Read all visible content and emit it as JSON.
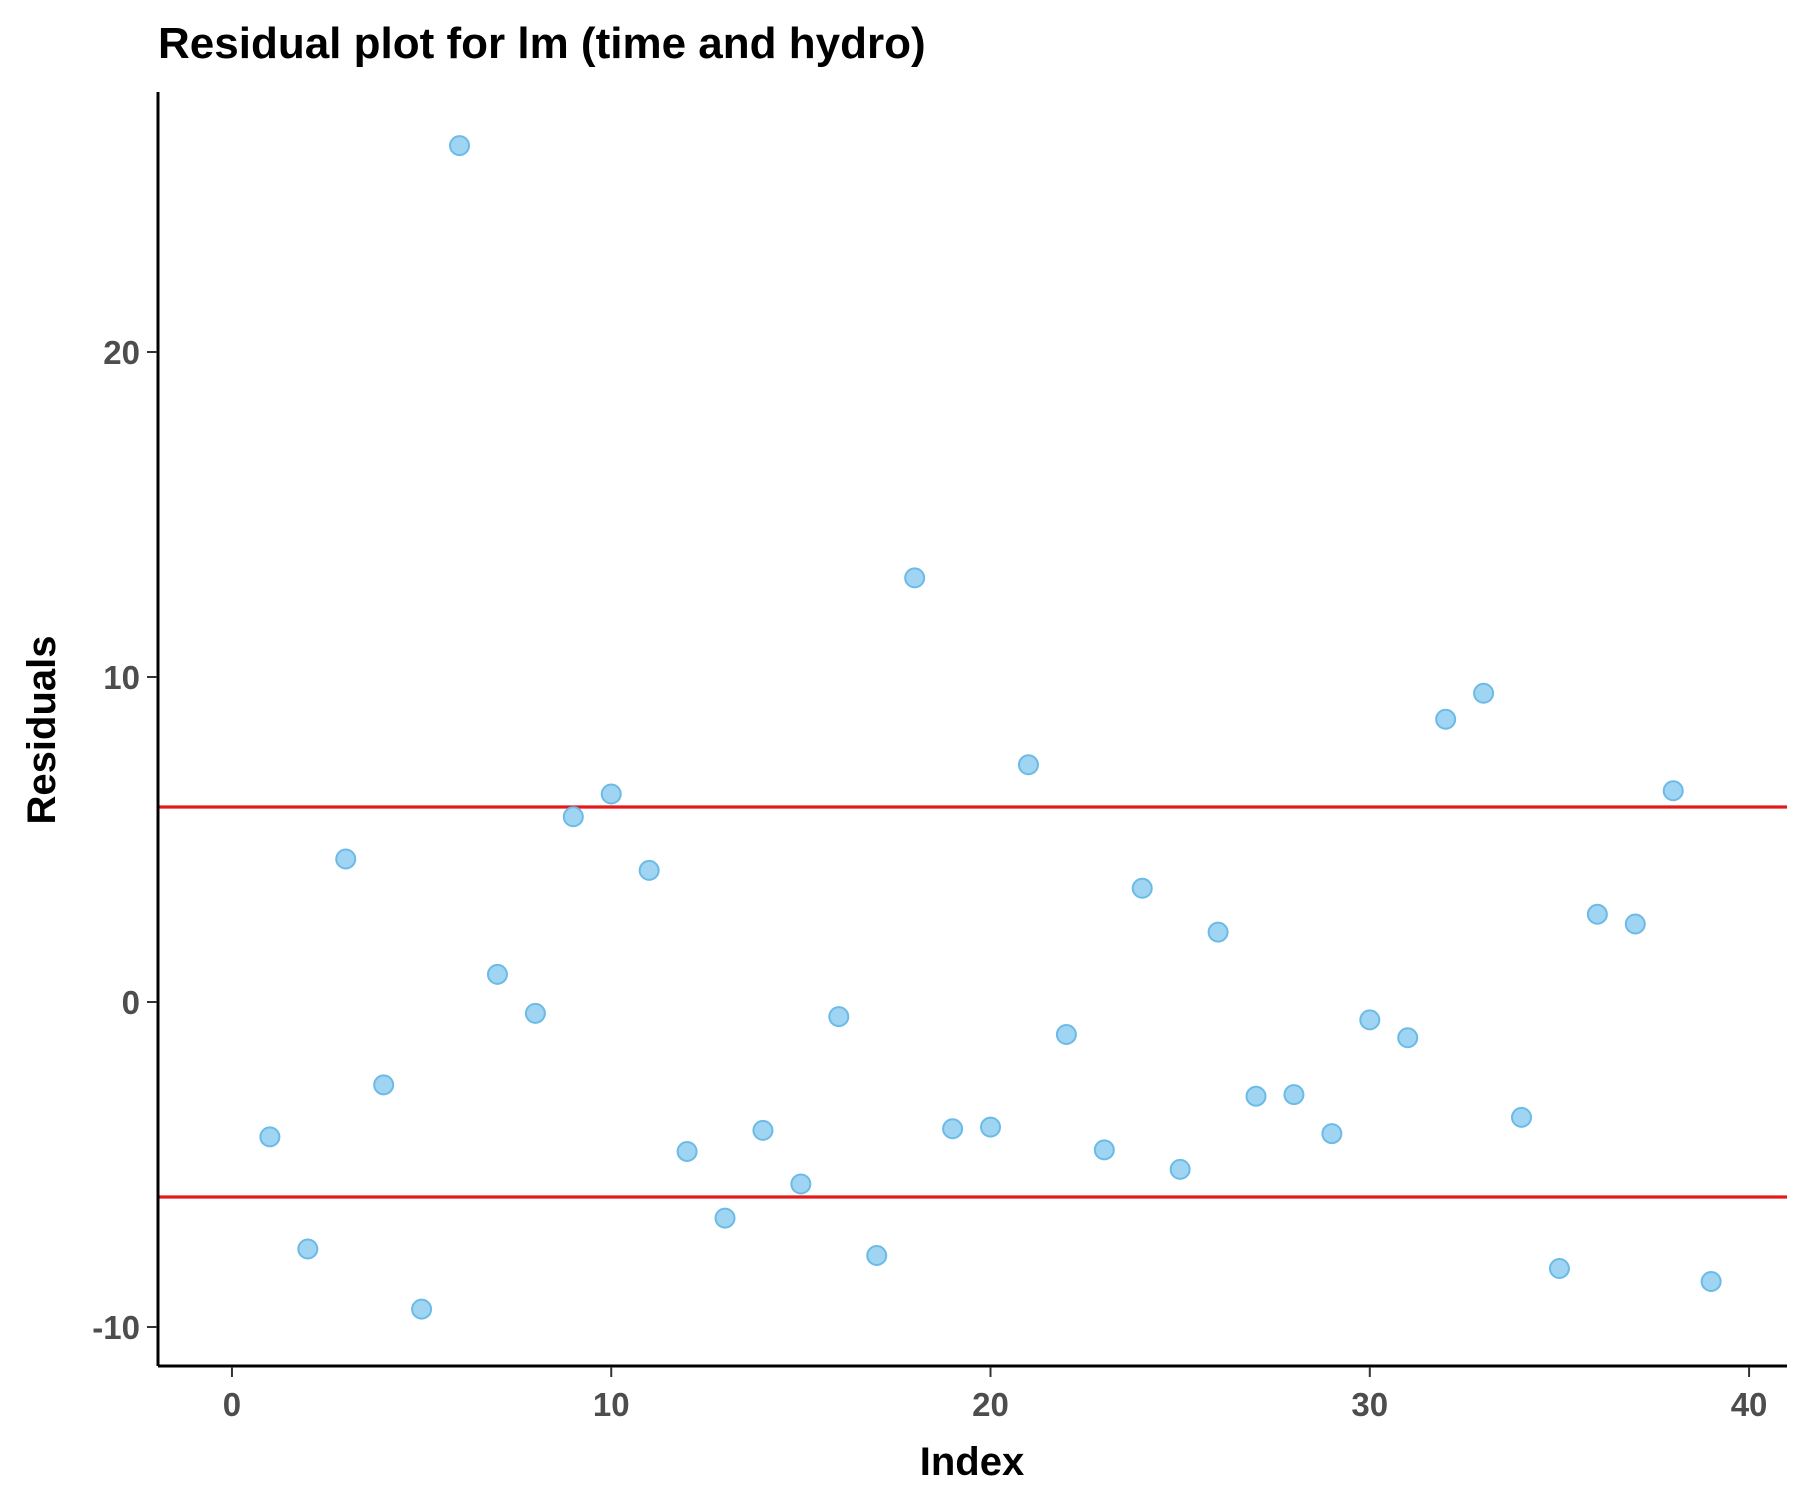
{
  "chart_data": {
    "type": "scatter",
    "title": "Residual plot for lm (time and hydro)",
    "xlabel": "Index",
    "ylabel": "Residuals",
    "xlim": [
      -1.95,
      41.0
    ],
    "ylim": [
      -11.2,
      28.0
    ],
    "x_ticks": [
      0,
      10,
      20,
      30,
      40
    ],
    "x_tick_labels": [
      "0",
      "10",
      "20",
      "30",
      "40"
    ],
    "y_ticks": [
      -10,
      0,
      10,
      20
    ],
    "y_tick_labels": [
      "-10",
      "0",
      "10",
      "20"
    ],
    "grid": false,
    "legend": "none",
    "point_fill": "#9FD4F2",
    "point_stroke": "#6BBBE6",
    "reference_line_color": "#E31A1C",
    "reference_lines_y": [
      6.0,
      -6.0
    ],
    "x": [
      1,
      2,
      3,
      4,
      5,
      6,
      7,
      8,
      9,
      10,
      11,
      12,
      13,
      14,
      15,
      16,
      17,
      18,
      19,
      20,
      21,
      22,
      23,
      24,
      25,
      26,
      27,
      28,
      29,
      30,
      31,
      32,
      33,
      34,
      35,
      36,
      37,
      38,
      39
    ],
    "y": [
      -4.15,
      -7.6,
      4.4,
      -2.55,
      -9.45,
      26.35,
      0.85,
      -0.35,
      5.7,
      6.4,
      4.05,
      -4.6,
      -6.65,
      -3.95,
      -5.6,
      -0.45,
      -7.8,
      13.05,
      -3.9,
      -3.85,
      7.3,
      -1.0,
      -4.55,
      3.5,
      -5.15,
      2.15,
      -2.9,
      -2.85,
      -4.05,
      -0.55,
      -1.1,
      8.7,
      9.5,
      -3.55,
      -8.2,
      2.7,
      2.4,
      6.5,
      -8.6
    ]
  }
}
